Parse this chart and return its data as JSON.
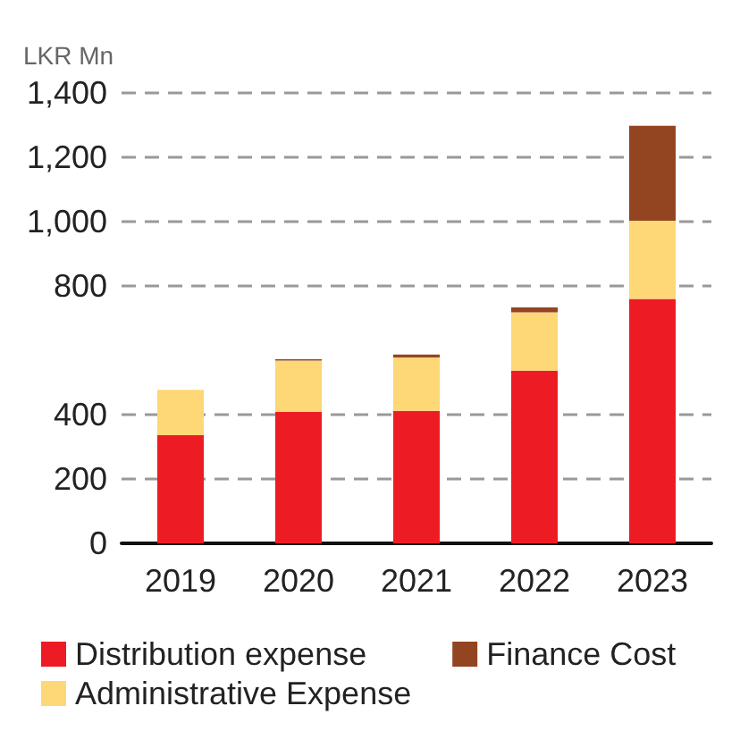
{
  "chart_data": {
    "type": "bar",
    "stacked": true,
    "ylabel": "LKR Mn",
    "categories": [
      "2019",
      "2020",
      "2021",
      "2022",
      "2023"
    ],
    "series": [
      {
        "name": "Distribution expense",
        "color": "#ed1c24",
        "values": [
          336,
          408,
          412,
          537,
          760
        ]
      },
      {
        "name": "Administrative Expense",
        "color": "#fed776",
        "values": [
          141,
          160,
          166,
          181,
          243
        ]
      },
      {
        "name": "Finance Cost",
        "color": "#934521",
        "values": [
          0,
          4,
          9,
          15,
          295
        ]
      }
    ],
    "ylim": [
      0,
      1400
    ],
    "yticks": [
      0,
      200,
      400,
      800,
      {
        "value": 1000,
        "label": "1,000"
      },
      {
        "value": 1200,
        "label": "1,200"
      },
      {
        "value": 1400,
        "label": "1,400"
      }
    ],
    "grid": "y",
    "legend": "bottom"
  }
}
